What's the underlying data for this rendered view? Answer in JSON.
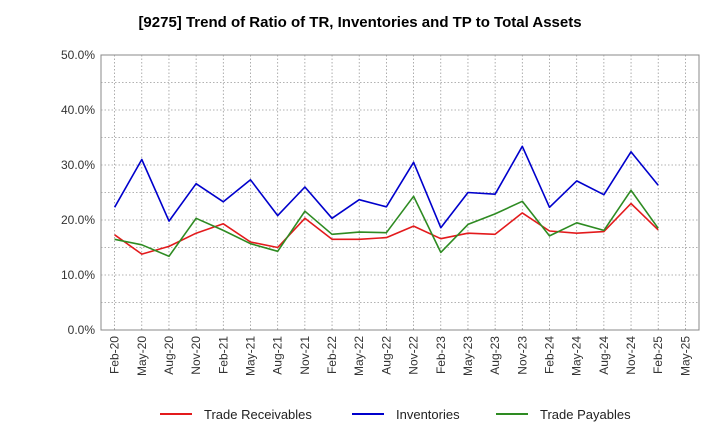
{
  "chart_data": {
    "type": "line",
    "title": "[9275]  Trend of Ratio of TR, Inventories and TP to Total Assets",
    "xlabel": "",
    "ylabel": "",
    "ylim": [
      0,
      50
    ],
    "y_ticks": [
      "0.0%",
      "10.0%",
      "20.0%",
      "30.0%",
      "40.0%",
      "50.0%"
    ],
    "x_tick_labels": [
      "Feb-20",
      "May-20",
      "Aug-20",
      "Nov-20",
      "Feb-21",
      "May-21",
      "Aug-21",
      "Nov-21",
      "Feb-22",
      "May-22",
      "Aug-22",
      "Nov-22",
      "Feb-23",
      "May-23",
      "Aug-23",
      "Nov-23",
      "Feb-24",
      "May-24",
      "Aug-24",
      "Nov-24",
      "Feb-25",
      "May-25"
    ],
    "x": [
      "Feb-20",
      "May-20",
      "Aug-20",
      "Nov-20",
      "Feb-21",
      "May-21",
      "Aug-21",
      "Nov-21",
      "Feb-22",
      "May-22",
      "Aug-22",
      "Nov-22",
      "Feb-23",
      "May-23",
      "Aug-23",
      "Nov-23",
      "Feb-24",
      "May-24",
      "Aug-24",
      "Nov-24",
      "Feb-25"
    ],
    "grid": true,
    "legend_position": "bottom",
    "series": [
      {
        "name": "Trade Receivables",
        "color": "#e31a1c",
        "values": [
          17.3,
          13.8,
          15.2,
          17.6,
          19.3,
          16.0,
          15.0,
          20.3,
          16.5,
          16.5,
          16.8,
          18.9,
          16.6,
          17.6,
          17.4,
          21.3,
          18.0,
          17.6,
          17.9,
          23.0,
          18.2
        ]
      },
      {
        "name": "Inventories",
        "color": "#0000cc",
        "values": [
          22.3,
          31.0,
          19.8,
          26.6,
          23.3,
          27.3,
          20.8,
          26.0,
          20.3,
          23.7,
          22.4,
          30.5,
          18.6,
          25.0,
          24.7,
          33.4,
          22.3,
          27.1,
          24.6,
          32.4,
          26.3
        ]
      },
      {
        "name": "Trade Payables",
        "color": "#2e8b22",
        "values": [
          16.5,
          15.5,
          13.4,
          20.3,
          18.1,
          15.7,
          14.3,
          21.6,
          17.4,
          17.8,
          17.7,
          24.3,
          14.1,
          19.2,
          21.1,
          23.4,
          17.1,
          19.5,
          18.1,
          25.4,
          18.5
        ]
      }
    ]
  }
}
